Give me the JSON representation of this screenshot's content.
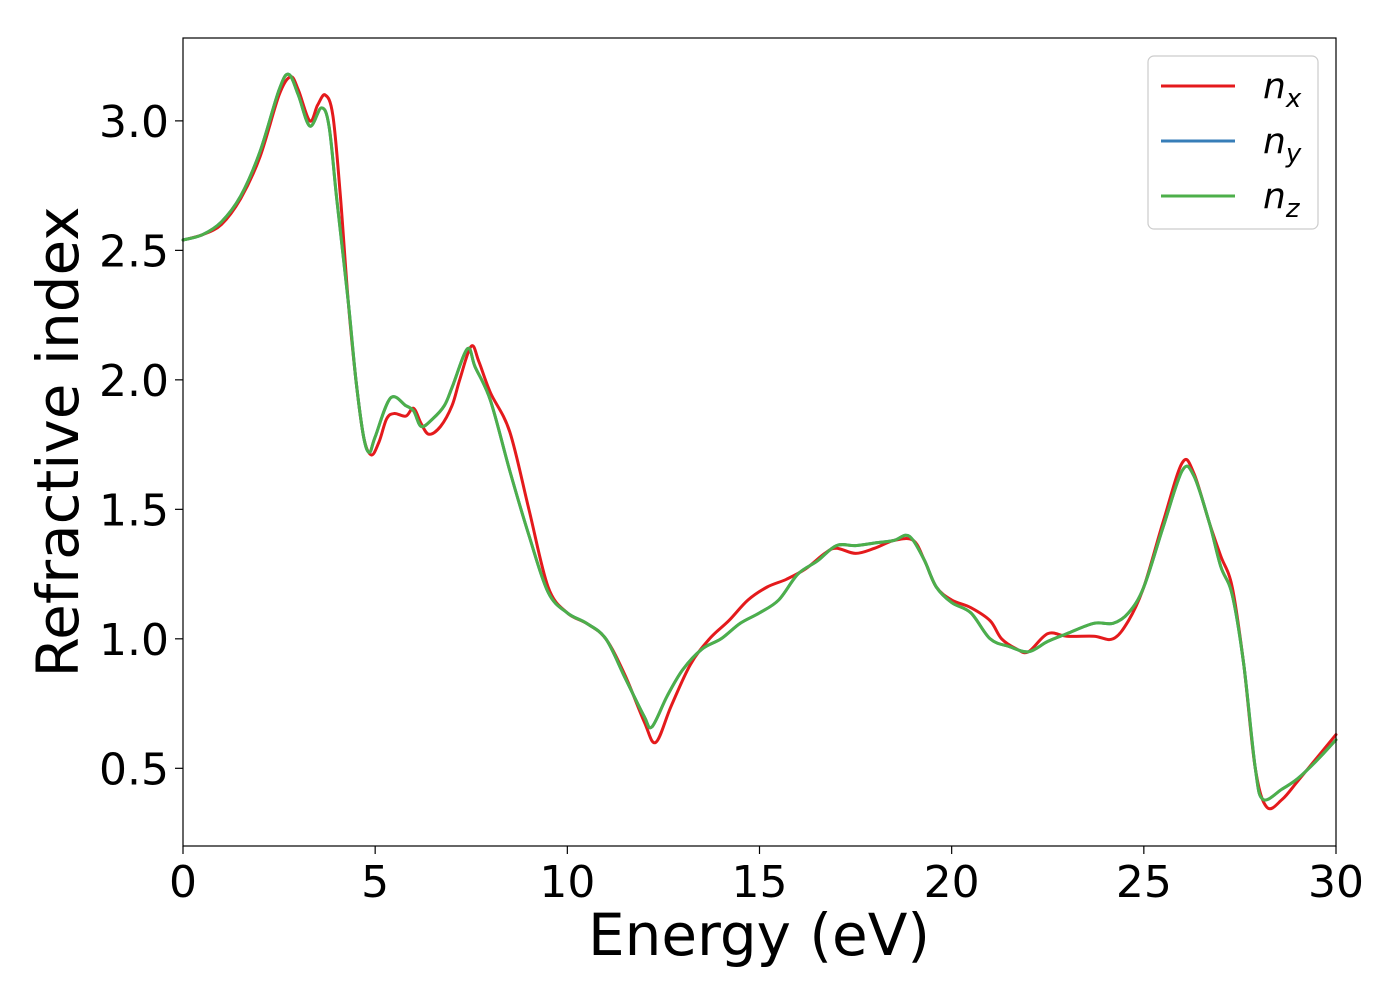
{
  "chart_data": {
    "type": "line",
    "title": "",
    "xlabel": "Energy (eV)",
    "ylabel": "Refractive index",
    "xlim": [
      0,
      30
    ],
    "ylim": [
      0.2,
      3.32
    ],
    "xticks": [
      0,
      5,
      10,
      15,
      20,
      25,
      30
    ],
    "xtick_labels": [
      "0",
      "5",
      "10",
      "15",
      "20",
      "25",
      "30"
    ],
    "yticks": [
      0.5,
      1.0,
      1.5,
      2.0,
      2.5,
      3.0
    ],
    "ytick_labels": [
      "0.5",
      "1.0",
      "1.5",
      "2.0",
      "2.5",
      "3.0"
    ],
    "grid": false,
    "legend_position": "top-right",
    "series": [
      {
        "name": "n_x",
        "label_base": "n",
        "label_sub": "x",
        "color": "#e41a1c",
        "points": [
          [
            0,
            2.54
          ],
          [
            0.5,
            2.56
          ],
          [
            1,
            2.6
          ],
          [
            1.5,
            2.7
          ],
          [
            2,
            2.86
          ],
          [
            2.5,
            3.1
          ],
          [
            2.8,
            3.17
          ],
          [
            3,
            3.12
          ],
          [
            3.3,
            3.0
          ],
          [
            3.5,
            3.06
          ],
          [
            3.7,
            3.1
          ],
          [
            3.9,
            3.02
          ],
          [
            4.1,
            2.7
          ],
          [
            4.3,
            2.3
          ],
          [
            4.5,
            2.0
          ],
          [
            4.7,
            1.78
          ],
          [
            4.9,
            1.71
          ],
          [
            5.1,
            1.76
          ],
          [
            5.3,
            1.85
          ],
          [
            5.5,
            1.87
          ],
          [
            5.8,
            1.86
          ],
          [
            6.0,
            1.89
          ],
          [
            6.2,
            1.83
          ],
          [
            6.4,
            1.79
          ],
          [
            6.7,
            1.82
          ],
          [
            7.0,
            1.9
          ],
          [
            7.2,
            2.0
          ],
          [
            7.5,
            2.13
          ],
          [
            7.7,
            2.07
          ],
          [
            8.0,
            1.95
          ],
          [
            8.5,
            1.8
          ],
          [
            9.0,
            1.5
          ],
          [
            9.5,
            1.2
          ],
          [
            10.0,
            1.1
          ],
          [
            10.5,
            1.06
          ],
          [
            11.0,
            1.0
          ],
          [
            11.5,
            0.86
          ],
          [
            12.0,
            0.68
          ],
          [
            12.3,
            0.6
          ],
          [
            12.7,
            0.74
          ],
          [
            13.2,
            0.9
          ],
          [
            13.7,
            1.0
          ],
          [
            14.2,
            1.07
          ],
          [
            14.7,
            1.15
          ],
          [
            15.2,
            1.2
          ],
          [
            15.7,
            1.23
          ],
          [
            16.2,
            1.27
          ],
          [
            16.7,
            1.33
          ],
          [
            17.0,
            1.35
          ],
          [
            17.5,
            1.33
          ],
          [
            18.0,
            1.35
          ],
          [
            18.5,
            1.38
          ],
          [
            19.0,
            1.38
          ],
          [
            19.3,
            1.3
          ],
          [
            19.6,
            1.2
          ],
          [
            20.0,
            1.15
          ],
          [
            20.5,
            1.12
          ],
          [
            21.0,
            1.07
          ],
          [
            21.3,
            1.0
          ],
          [
            21.7,
            0.96
          ],
          [
            22.0,
            0.95
          ],
          [
            22.5,
            1.02
          ],
          [
            23.0,
            1.01
          ],
          [
            23.7,
            1.01
          ],
          [
            24.2,
            1.0
          ],
          [
            24.6,
            1.07
          ],
          [
            25.0,
            1.2
          ],
          [
            25.5,
            1.45
          ],
          [
            26.0,
            1.68
          ],
          [
            26.3,
            1.64
          ],
          [
            26.7,
            1.45
          ],
          [
            27.0,
            1.32
          ],
          [
            27.3,
            1.2
          ],
          [
            27.6,
            0.9
          ],
          [
            27.9,
            0.5
          ],
          [
            28.2,
            0.35
          ],
          [
            28.6,
            0.38
          ],
          [
            29.0,
            0.45
          ],
          [
            29.5,
            0.54
          ],
          [
            30.0,
            0.63
          ]
        ]
      },
      {
        "name": "n_y",
        "label_base": "n",
        "label_sub": "y",
        "color": "#377eb8",
        "points": [
          [
            0,
            2.54
          ],
          [
            0.5,
            2.56
          ],
          [
            1,
            2.61
          ],
          [
            1.5,
            2.71
          ],
          [
            2,
            2.88
          ],
          [
            2.5,
            3.12
          ],
          [
            2.75,
            3.18
          ],
          [
            3,
            3.1
          ],
          [
            3.3,
            2.98
          ],
          [
            3.6,
            3.05
          ],
          [
            3.8,
            2.98
          ],
          [
            4.0,
            2.7
          ],
          [
            4.3,
            2.3
          ],
          [
            4.5,
            2.0
          ],
          [
            4.7,
            1.78
          ],
          [
            4.85,
            1.72
          ],
          [
            5.0,
            1.78
          ],
          [
            5.4,
            1.93
          ],
          [
            5.8,
            1.9
          ],
          [
            6.0,
            1.88
          ],
          [
            6.2,
            1.82
          ],
          [
            6.5,
            1.85
          ],
          [
            6.8,
            1.9
          ],
          [
            7.0,
            1.97
          ],
          [
            7.4,
            2.12
          ],
          [
            7.6,
            2.05
          ],
          [
            8.0,
            1.92
          ],
          [
            8.5,
            1.65
          ],
          [
            9.0,
            1.4
          ],
          [
            9.5,
            1.18
          ],
          [
            10.0,
            1.1
          ],
          [
            10.5,
            1.06
          ],
          [
            11.0,
            1.0
          ],
          [
            11.5,
            0.85
          ],
          [
            12.0,
            0.7
          ],
          [
            12.2,
            0.66
          ],
          [
            12.6,
            0.78
          ],
          [
            13.0,
            0.88
          ],
          [
            13.5,
            0.96
          ],
          [
            14.0,
            1.0
          ],
          [
            14.5,
            1.06
          ],
          [
            15.0,
            1.1
          ],
          [
            15.5,
            1.15
          ],
          [
            16.0,
            1.25
          ],
          [
            16.5,
            1.3
          ],
          [
            17.0,
            1.36
          ],
          [
            17.5,
            1.36
          ],
          [
            18.0,
            1.37
          ],
          [
            18.5,
            1.38
          ],
          [
            18.8,
            1.4
          ],
          [
            19.0,
            1.38
          ],
          [
            19.3,
            1.3
          ],
          [
            19.6,
            1.2
          ],
          [
            20.0,
            1.14
          ],
          [
            20.5,
            1.1
          ],
          [
            21.0,
            1.0
          ],
          [
            21.5,
            0.97
          ],
          [
            22.0,
            0.95
          ],
          [
            22.5,
            0.99
          ],
          [
            23.0,
            1.02
          ],
          [
            23.7,
            1.06
          ],
          [
            24.2,
            1.06
          ],
          [
            24.6,
            1.1
          ],
          [
            25.0,
            1.2
          ],
          [
            25.5,
            1.43
          ],
          [
            26.0,
            1.65
          ],
          [
            26.3,
            1.63
          ],
          [
            26.7,
            1.45
          ],
          [
            27.0,
            1.28
          ],
          [
            27.3,
            1.17
          ],
          [
            27.6,
            0.9
          ],
          [
            27.9,
            0.5
          ],
          [
            28.1,
            0.38
          ],
          [
            28.6,
            0.42
          ],
          [
            29.0,
            0.46
          ],
          [
            29.5,
            0.53
          ],
          [
            30.0,
            0.61
          ]
        ]
      },
      {
        "name": "n_z",
        "label_base": "n",
        "label_sub": "z",
        "color": "#4daf4a",
        "points": [
          [
            0,
            2.54
          ],
          [
            0.5,
            2.56
          ],
          [
            1,
            2.61
          ],
          [
            1.5,
            2.71
          ],
          [
            2,
            2.88
          ],
          [
            2.5,
            3.12
          ],
          [
            2.75,
            3.18
          ],
          [
            3,
            3.1
          ],
          [
            3.3,
            2.98
          ],
          [
            3.6,
            3.05
          ],
          [
            3.8,
            2.98
          ],
          [
            4.0,
            2.7
          ],
          [
            4.3,
            2.3
          ],
          [
            4.5,
            2.0
          ],
          [
            4.7,
            1.78
          ],
          [
            4.85,
            1.72
          ],
          [
            5.0,
            1.78
          ],
          [
            5.4,
            1.93
          ],
          [
            5.8,
            1.9
          ],
          [
            6.0,
            1.88
          ],
          [
            6.2,
            1.82
          ],
          [
            6.5,
            1.85
          ],
          [
            6.8,
            1.9
          ],
          [
            7.0,
            1.97
          ],
          [
            7.4,
            2.12
          ],
          [
            7.6,
            2.05
          ],
          [
            8.0,
            1.92
          ],
          [
            8.5,
            1.65
          ],
          [
            9.0,
            1.4
          ],
          [
            9.5,
            1.18
          ],
          [
            10.0,
            1.1
          ],
          [
            10.5,
            1.06
          ],
          [
            11.0,
            1.0
          ],
          [
            11.5,
            0.85
          ],
          [
            12.0,
            0.7
          ],
          [
            12.2,
            0.66
          ],
          [
            12.6,
            0.78
          ],
          [
            13.0,
            0.88
          ],
          [
            13.5,
            0.96
          ],
          [
            14.0,
            1.0
          ],
          [
            14.5,
            1.06
          ],
          [
            15.0,
            1.1
          ],
          [
            15.5,
            1.15
          ],
          [
            16.0,
            1.25
          ],
          [
            16.5,
            1.3
          ],
          [
            17.0,
            1.36
          ],
          [
            17.5,
            1.36
          ],
          [
            18.0,
            1.37
          ],
          [
            18.5,
            1.38
          ],
          [
            18.8,
            1.4
          ],
          [
            19.0,
            1.38
          ],
          [
            19.3,
            1.3
          ],
          [
            19.6,
            1.2
          ],
          [
            20.0,
            1.14
          ],
          [
            20.5,
            1.1
          ],
          [
            21.0,
            1.0
          ],
          [
            21.5,
            0.97
          ],
          [
            22.0,
            0.95
          ],
          [
            22.5,
            0.99
          ],
          [
            23.0,
            1.02
          ],
          [
            23.7,
            1.06
          ],
          [
            24.2,
            1.06
          ],
          [
            24.6,
            1.1
          ],
          [
            25.0,
            1.2
          ],
          [
            25.5,
            1.43
          ],
          [
            26.0,
            1.65
          ],
          [
            26.3,
            1.63
          ],
          [
            26.7,
            1.45
          ],
          [
            27.0,
            1.28
          ],
          [
            27.3,
            1.17
          ],
          [
            27.6,
            0.9
          ],
          [
            27.9,
            0.5
          ],
          [
            28.1,
            0.38
          ],
          [
            28.6,
            0.42
          ],
          [
            29.0,
            0.46
          ],
          [
            29.5,
            0.53
          ],
          [
            30.0,
            0.61
          ]
        ]
      }
    ]
  }
}
